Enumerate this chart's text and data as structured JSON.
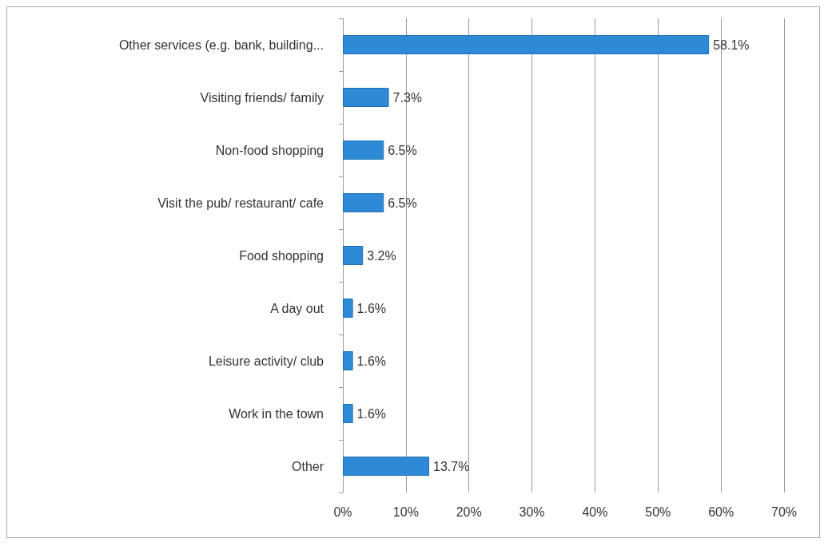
{
  "chart_data": {
    "type": "bar",
    "orientation": "horizontal",
    "categories": [
      "Other services (e.g. bank, building...",
      "Visiting friends/ family",
      "Non-food shopping",
      "Visit the pub/ restaurant/ cafe",
      "Food shopping",
      "A day out",
      "Leisure activity/ club",
      "Work in the town",
      "Other"
    ],
    "values": [
      58.1,
      7.3,
      6.5,
      6.5,
      3.2,
      1.6,
      1.6,
      1.6,
      13.7
    ],
    "value_labels": [
      "58.1%",
      "7.3%",
      "6.5%",
      "6.5%",
      "3.2%",
      "1.6%",
      "1.6%",
      "1.6%",
      "13.7%"
    ],
    "color": "#2e8ad6",
    "xlim": [
      0,
      70
    ],
    "xticks": [
      {
        "value": 0,
        "label": "0%"
      },
      {
        "value": 10,
        "label": "10%"
      },
      {
        "value": 20,
        "label": "20%"
      },
      {
        "value": 30,
        "label": "30%"
      },
      {
        "value": 40,
        "label": "40%"
      },
      {
        "value": 50,
        "label": "50%"
      },
      {
        "value": 60,
        "label": "60%"
      },
      {
        "value": 70,
        "label": "70%"
      }
    ],
    "grid": "x"
  }
}
